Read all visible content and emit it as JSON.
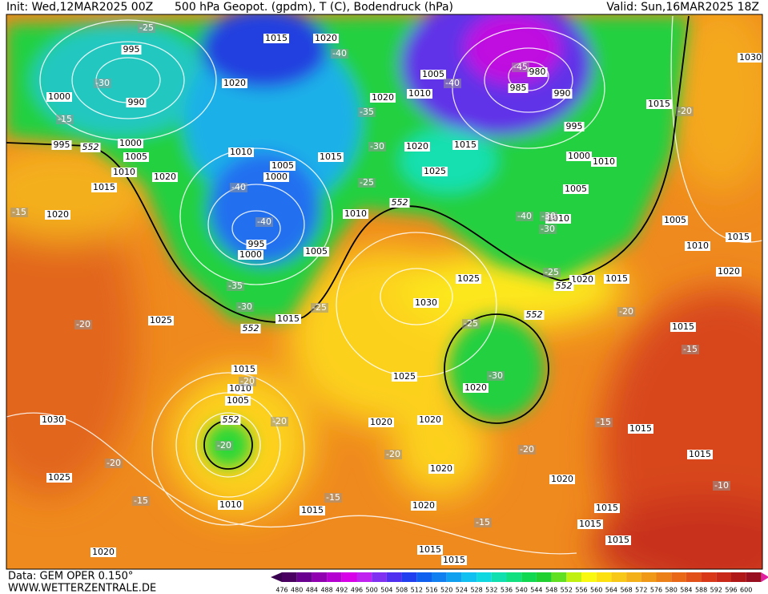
{
  "header": {
    "init": "Init: Wed,12MAR2025 00Z",
    "title": "500 hPa Geopot. (gpdm), T (C), Bodendruck (hPa)",
    "valid": "Valid: Sun,16MAR2025 18Z"
  },
  "footer": {
    "data": "Data: GEM OPER 0.150°",
    "url": "WWW.WETTERZENTRALE.DE"
  },
  "scale": {
    "labels": [
      476,
      480,
      484,
      488,
      492,
      496,
      500,
      504,
      508,
      512,
      516,
      520,
      524,
      528,
      532,
      536,
      540,
      544,
      548,
      552,
      556,
      560,
      564,
      568,
      572,
      576,
      580,
      584,
      588,
      592,
      596,
      600
    ]
  },
  "map": {
    "pressure_labels": [
      995,
      1000,
      990,
      995,
      1000,
      1005,
      1010,
      1020,
      1015,
      1020,
      1015,
      1020,
      1020,
      1010,
      1005,
      1000,
      1015,
      995,
      1000,
      1005,
      1010,
      1020,
      1005,
      1010,
      980,
      985,
      990,
      995,
      1000,
      1020,
      1015,
      1025,
      1010,
      1005,
      1010,
      1015,
      1030,
      1005,
      1010,
      1015,
      1020,
      1025,
      1020,
      1015,
      1030,
      1025,
      1015,
      1015,
      1010,
      1005,
      1025,
      1020,
      1020,
      1020,
      1030,
      1025,
      1010,
      1015,
      1020,
      1020,
      1020,
      1015,
      1015,
      1015,
      1015,
      1015,
      1020,
      1015,
      1015,
      1015
    ],
    "temperature_labels": [
      -25,
      -40,
      -30,
      -15,
      -35,
      -30,
      -25,
      -40,
      -40,
      -45,
      -40,
      -40,
      -30,
      -30,
      -25,
      -20,
      -15,
      -35,
      -30,
      -25,
      -20,
      -20,
      -20,
      -20,
      -30,
      -25,
      -20,
      -15,
      -15,
      -20,
      -20,
      -20,
      -15,
      -15,
      -15,
      -10
    ],
    "geopotential_labels": [
      552,
      552,
      552,
      552,
      552,
      552
    ]
  }
}
